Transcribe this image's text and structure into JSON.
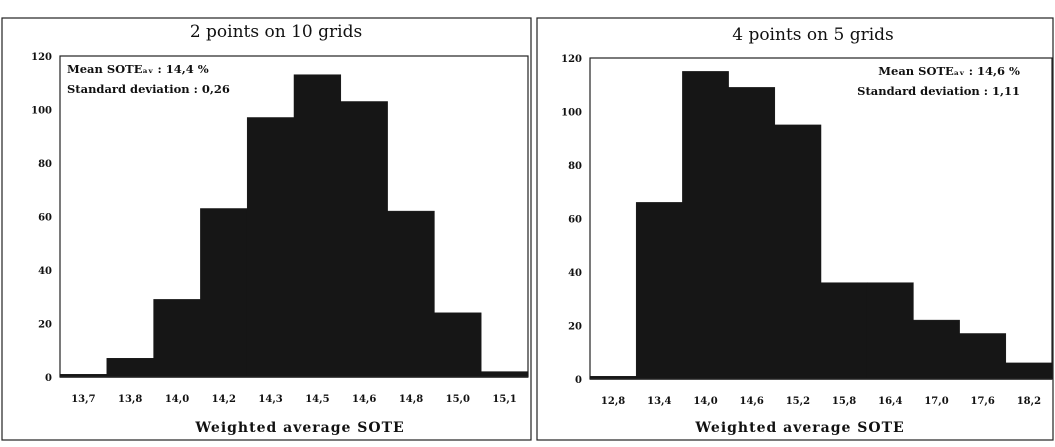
{
  "chart_data": [
    {
      "type": "bar",
      "title": "2 points on 10 grids",
      "xlabel": "Weighted average SOTE",
      "ylabel": "",
      "ylim": [
        0,
        120
      ],
      "yticks": [
        "0",
        "20",
        "40",
        "60",
        "80",
        "100",
        "120"
      ],
      "categories": [
        "13,7",
        "13,8",
        "14,0",
        "14,2",
        "14,3",
        "14,5",
        "14,6",
        "14,8",
        "15,0",
        "15,1"
      ],
      "values": [
        1,
        7,
        29,
        63,
        97,
        113,
        103,
        62,
        24,
        2
      ],
      "annotations": [
        "Mean SOTEₐᵥ : 14,4 %",
        "Standard deviation : 0,26"
      ],
      "annotation_position": "top-left"
    },
    {
      "type": "bar",
      "title": "4 points on 5 grids",
      "xlabel": "Weighted average SOTE",
      "ylabel": "",
      "ylim": [
        0,
        120
      ],
      "yticks": [
        "0",
        "20",
        "40",
        "60",
        "80",
        "100",
        "120"
      ],
      "categories": [
        "12,8",
        "13,4",
        "14,0",
        "14,6",
        "15,2",
        "15,8",
        "16,4",
        "17,0",
        "17,6",
        "18,2"
      ],
      "values": [
        1,
        66,
        115,
        109,
        95,
        36,
        36,
        22,
        17,
        6
      ],
      "annotations": [
        "Mean SOTEₐᵥ : 14,6 %",
        "Standard deviation : 1,11"
      ],
      "annotation_position": "top-right"
    }
  ],
  "colors": {
    "bar": "#161616",
    "frame": "#222222",
    "background": "#ffffff"
  }
}
